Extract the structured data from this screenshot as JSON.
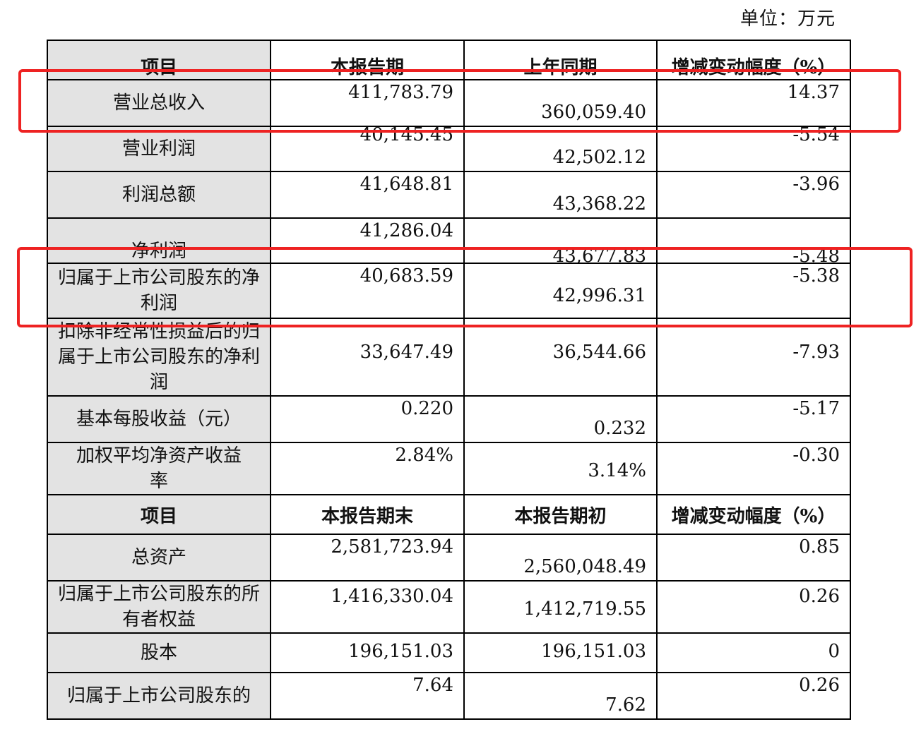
{
  "unit_label": "单位：万元",
  "header1": [
    "项目",
    "本报告期",
    "上年同期",
    "增减变动幅度（%）"
  ],
  "header2": [
    "项目",
    "本报告期末",
    "本报告期初",
    "增减变动幅度（%）"
  ],
  "rows1": [
    {
      "item": "营业总收入",
      "current": "411,783.79",
      "prior": "360,059.40",
      "change": "14.37"
    },
    {
      "item": "营业利润",
      "current": "40,145.45",
      "prior": "42,502.12",
      "change": "-5.54"
    },
    {
      "item": "利润总额",
      "current": "41,648.81",
      "prior": "43,368.22",
      "change": "-3.96"
    },
    {
      "item": "净利润",
      "current": "41,286.04",
      "prior": "43,677.83",
      "change": "-5.48"
    },
    {
      "item": "归属于上市公司股东的净利润",
      "current": "40,683.59",
      "prior": "42,996.31",
      "change": "-5.38"
    },
    {
      "item": "扣除非经常性损益后的归属于上市公司股东的净利润",
      "current": "33,647.49",
      "prior": "36,544.66",
      "change": "-7.93"
    },
    {
      "item": "基本每股收益（元）",
      "current": "0.220",
      "prior": "0.232",
      "change": "-5.17"
    },
    {
      "item": "加权平均净资产收益率",
      "current": "2.84%",
      "prior": "3.14%",
      "change": "-0.30"
    }
  ],
  "rows2": [
    {
      "item": "总资产",
      "current": "2,581,723.94",
      "prior": "2,560,048.49",
      "change": "0.85"
    },
    {
      "item": "归属于上市公司股东的所有者权益",
      "current": "1,416,330.04",
      "prior": "1,412,719.55",
      "change": "0.26"
    },
    {
      "item": "股本",
      "current": "196,151.03",
      "prior": "196,151.03",
      "change": "0"
    },
    {
      "item": "归属于上市公司股东的",
      "current": "7.64",
      "prior": "7.62",
      "change": "0.26"
    }
  ],
  "highlight_color": "#ee2222"
}
